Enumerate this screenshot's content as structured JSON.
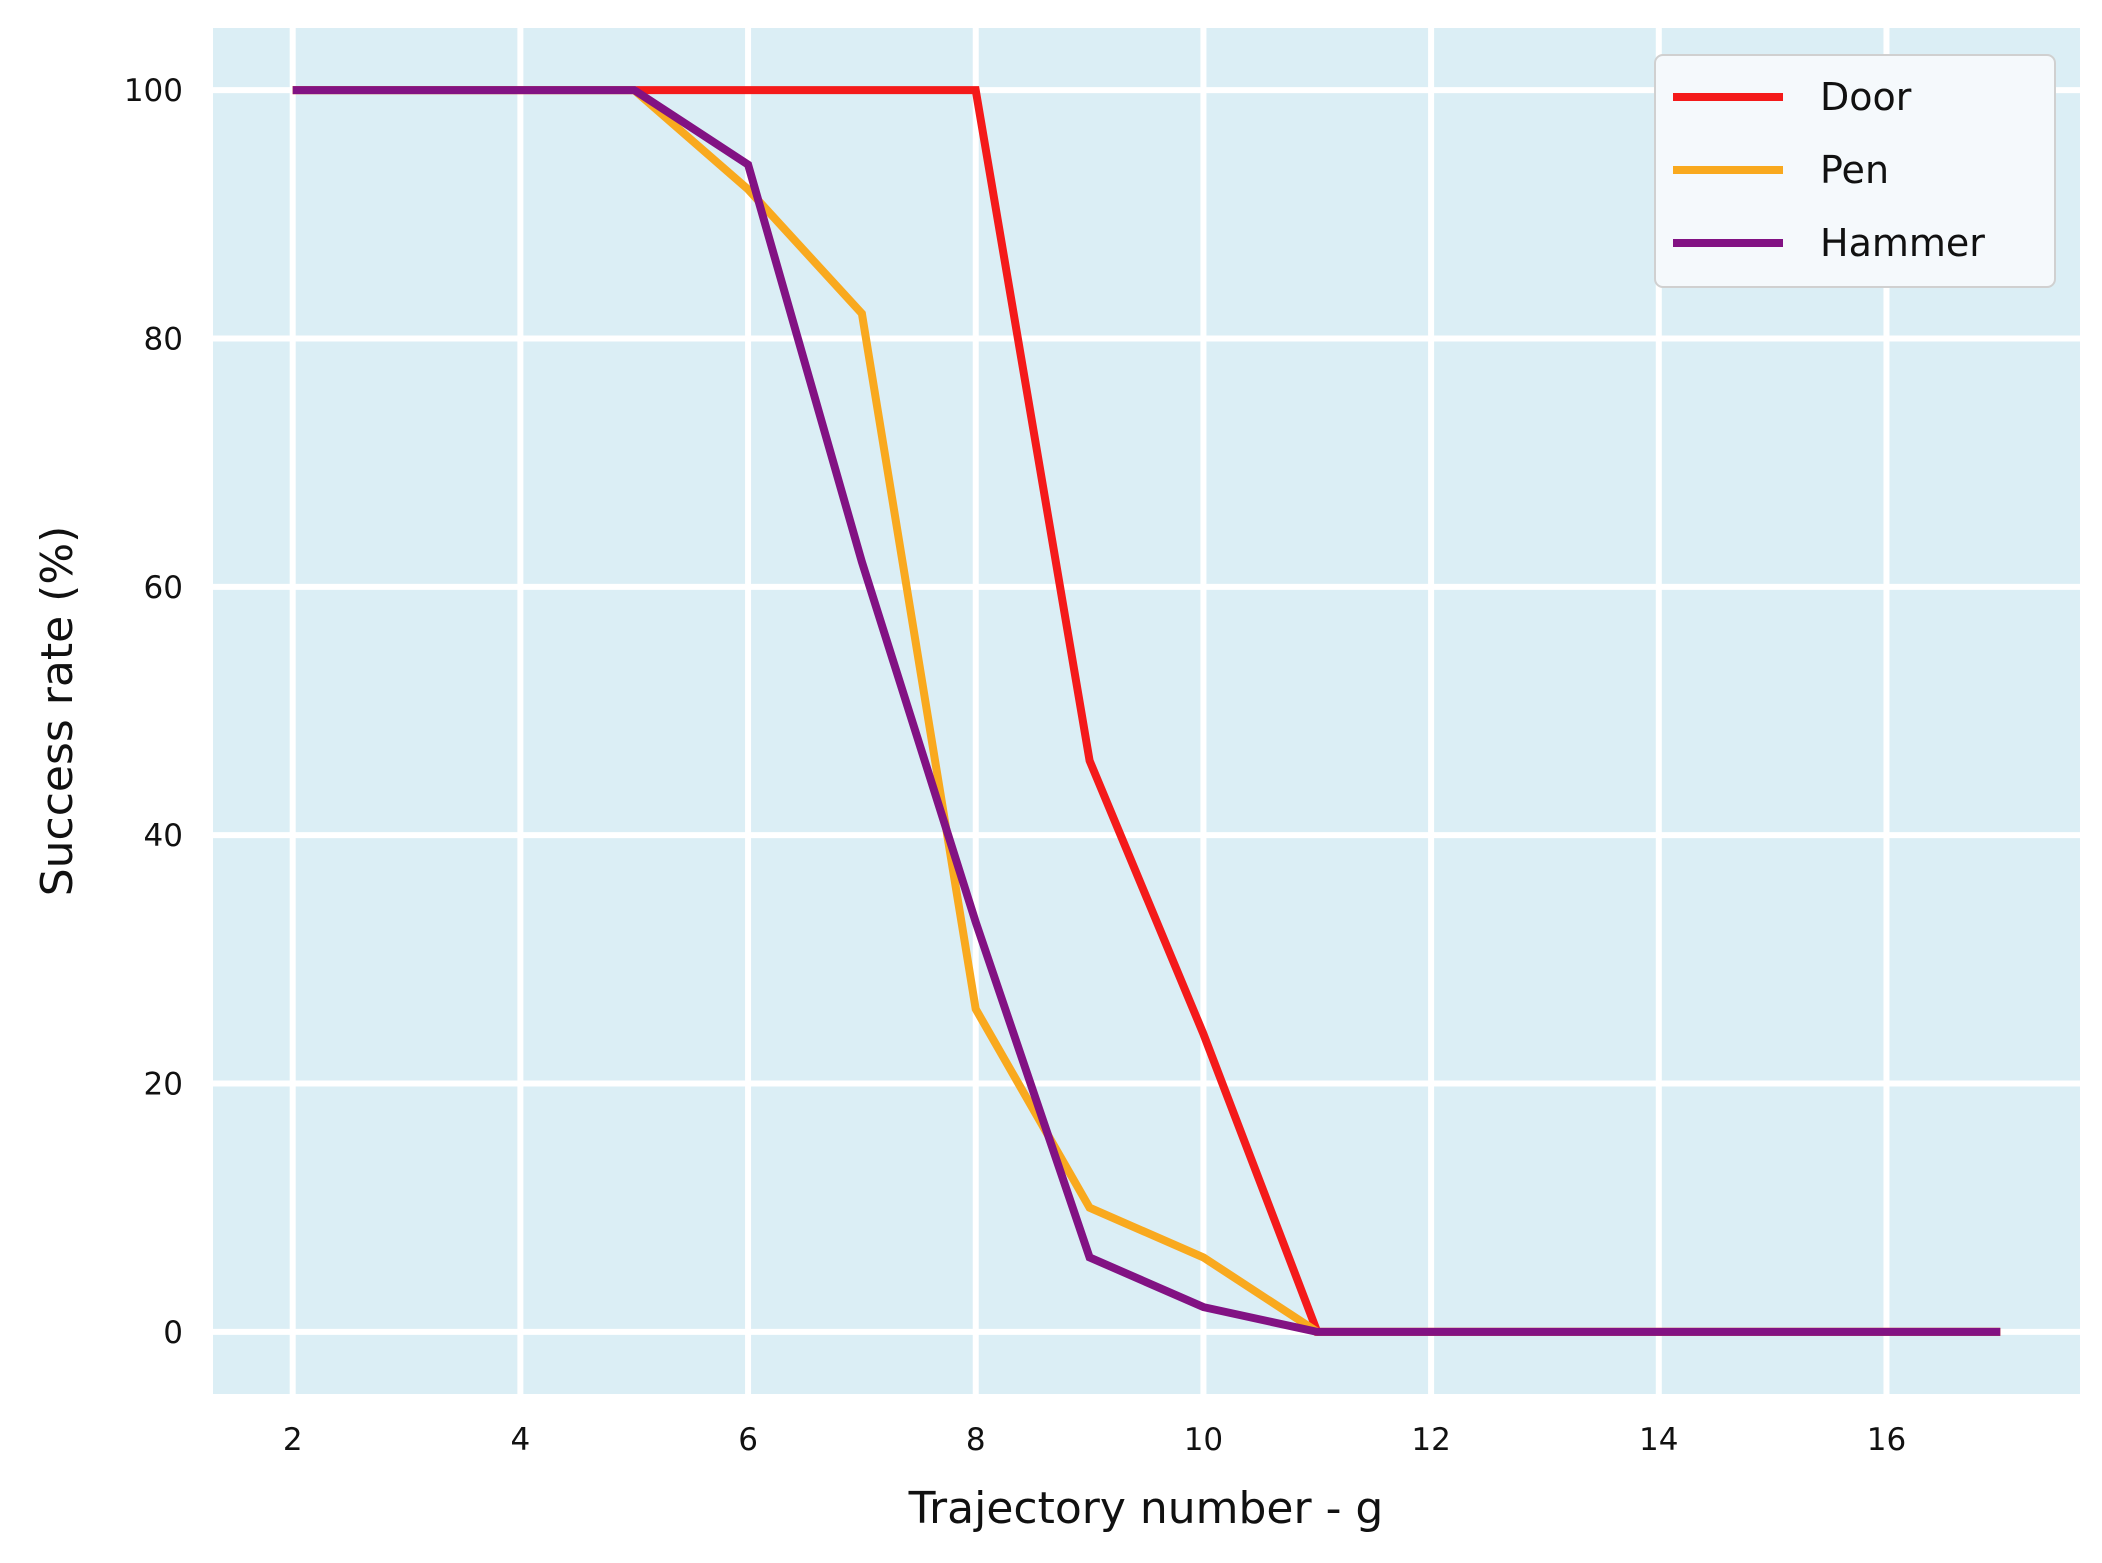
{
  "chart_data": {
    "type": "line",
    "xlabel": "Trajectory number - g",
    "ylabel": "Success rate (%)",
    "xlim": [
      1.3,
      17.7
    ],
    "ylim": [
      -5,
      105
    ],
    "xticks": [
      2,
      4,
      6,
      8,
      10,
      12,
      14,
      16
    ],
    "yticks": [
      0,
      20,
      40,
      60,
      80,
      100
    ],
    "grid": true,
    "legend_position": "top-right",
    "background_color": "#dbeef5",
    "grid_color": "#ffffff",
    "x": [
      2,
      3,
      4,
      5,
      6,
      7,
      8,
      9,
      10,
      11,
      12,
      13,
      14,
      15,
      16,
      17
    ],
    "series": [
      {
        "name": "Door",
        "color": "#f41a1a",
        "values": [
          100,
          100,
          100,
          100,
          100,
          100,
          100,
          46,
          24,
          0,
          0,
          0,
          0,
          0,
          0,
          0
        ]
      },
      {
        "name": "Pen",
        "color": "#f9a91e",
        "values": [
          100,
          100,
          100,
          100,
          92,
          82,
          26,
          10,
          6,
          0,
          0,
          0,
          0,
          0,
          0,
          0
        ]
      },
      {
        "name": "Hammer",
        "color": "#821283",
        "values": [
          100,
          100,
          100,
          100,
          94,
          62,
          33,
          6,
          2,
          0,
          0,
          0,
          0,
          0,
          0,
          0
        ]
      }
    ]
  }
}
